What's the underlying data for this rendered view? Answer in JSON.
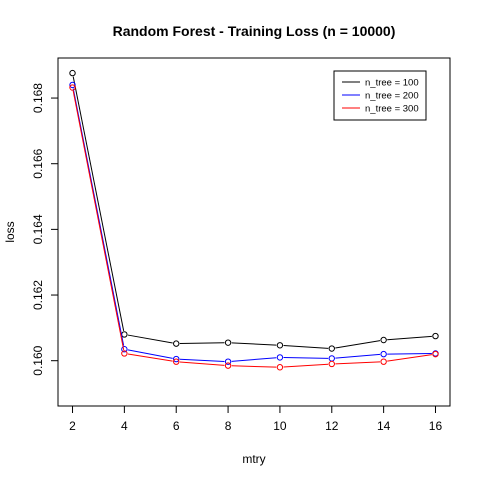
{
  "chart_data": {
    "type": "line",
    "title": "Random Forest - Training Loss (n = 10000)",
    "xlabel": "mtry",
    "ylabel": "loss",
    "x": [
      2,
      4,
      6,
      8,
      10,
      12,
      14,
      16
    ],
    "xticks": [
      "2",
      "4",
      "6",
      "8",
      "10",
      "12",
      "14",
      "16"
    ],
    "yticks": [
      "0.160",
      "0.162",
      "0.164",
      "0.166",
      "0.168"
    ],
    "yticks_values": [
      0.16,
      0.162,
      0.164,
      0.166,
      0.168
    ],
    "xlim": [
      1.44,
      16.56
    ],
    "ylim": [
      0.15862,
      0.16922
    ],
    "legend_position": "top-right",
    "grid": false,
    "series": [
      {
        "name": "n_tree = 100",
        "color": "#000000",
        "values": [
          0.16876,
          0.1608,
          0.16052,
          0.16055,
          0.16047,
          0.16037,
          0.16063,
          0.16075
        ]
      },
      {
        "name": "n_tree = 200",
        "color": "#0000ff",
        "values": [
          0.1684,
          0.16035,
          0.16005,
          0.15997,
          0.1601,
          0.16007,
          0.1602,
          0.16022
        ]
      },
      {
        "name": "n_tree = 300",
        "color": "#ff0000",
        "values": [
          0.16832,
          0.16022,
          0.15997,
          0.15985,
          0.1598,
          0.1599,
          0.15997,
          0.1602
        ]
      }
    ]
  }
}
